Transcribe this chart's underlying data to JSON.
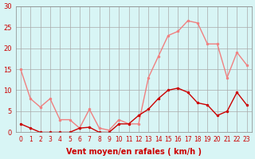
{
  "x": [
    0,
    1,
    2,
    3,
    4,
    5,
    6,
    7,
    8,
    9,
    10,
    11,
    12,
    13,
    14,
    15,
    16,
    17,
    18,
    19,
    20,
    21,
    22,
    23
  ],
  "rafales": [
    15,
    8,
    6,
    8,
    3,
    3,
    1,
    5.5,
    1,
    0.5,
    3,
    2,
    2,
    13,
    18,
    23,
    24,
    26.5,
    26,
    21,
    21,
    13,
    19,
    16
  ],
  "moyen": [
    2,
    1,
    0,
    0,
    0,
    0,
    1,
    1.2,
    0,
    0,
    2,
    2,
    4,
    5.5,
    8,
    10,
    10.5,
    9.5,
    7,
    6.5,
    4,
    5,
    9.5,
    6.5
  ],
  "color_rafales": "#f08080",
  "color_moyen": "#cc0000",
  "bg_color": "#d8f5f5",
  "grid_color": "#aaaaaa",
  "xlabel": "Vent moyen/en rafales ( km/h )",
  "xlabel_color": "#cc0000",
  "tick_color": "#cc0000",
  "ylim": [
    0,
    30
  ],
  "yticks": [
    0,
    5,
    10,
    15,
    20,
    25,
    30
  ]
}
